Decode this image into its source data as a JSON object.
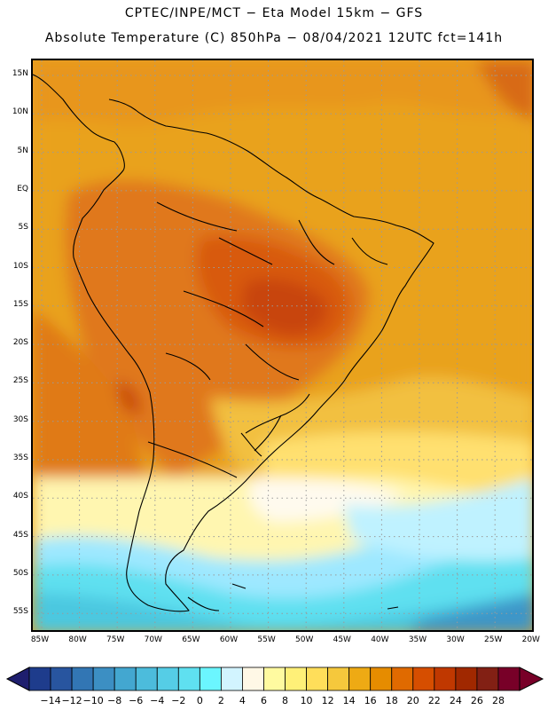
{
  "header": {
    "line1": "CPTEC/INPE/MCT −  Eta Model 15km − GFS",
    "line2": "Absolute Temperature (C) 850hPa − 08/04/2021 12UTC fct=141h"
  },
  "map": {
    "lat_labels": [
      "15N",
      "10N",
      "5N",
      "EQ",
      "5S",
      "10S",
      "15S",
      "20S",
      "25S",
      "30S",
      "35S",
      "40S",
      "45S",
      "50S",
      "55S"
    ],
    "lon_labels": [
      "85W",
      "80W",
      "75W",
      "70W",
      "65W",
      "60W",
      "55W",
      "50W",
      "45W",
      "40W",
      "35W",
      "30W",
      "25W",
      "20W"
    ]
  },
  "colorbar": {
    "labels": [
      "-14",
      "-12",
      "-10",
      "-8",
      "-6",
      "-4",
      "-2",
      "0",
      "2",
      "4",
      "6",
      "8",
      "10",
      "12",
      "14",
      "16",
      "18",
      "20",
      "22",
      "24",
      "26",
      "28"
    ],
    "colors": [
      "#1e3c8c",
      "#28559f",
      "#3276b4",
      "#3c8fc3",
      "#43a7d0",
      "#4cbcdc",
      "#55cde6",
      "#5fe0f0",
      "#6bf6ff",
      "#d2f4ff",
      "#fff8e6",
      "#fffaa0",
      "#fff078",
      "#ffde5a",
      "#f5c83c",
      "#eeaa14",
      "#e68c00",
      "#e06a00",
      "#d64e00",
      "#c03800",
      "#a02800",
      "#822014",
      "#780028"
    ],
    "end_low_color": "#1e1e6e",
    "end_high_color": "#780028"
  }
}
